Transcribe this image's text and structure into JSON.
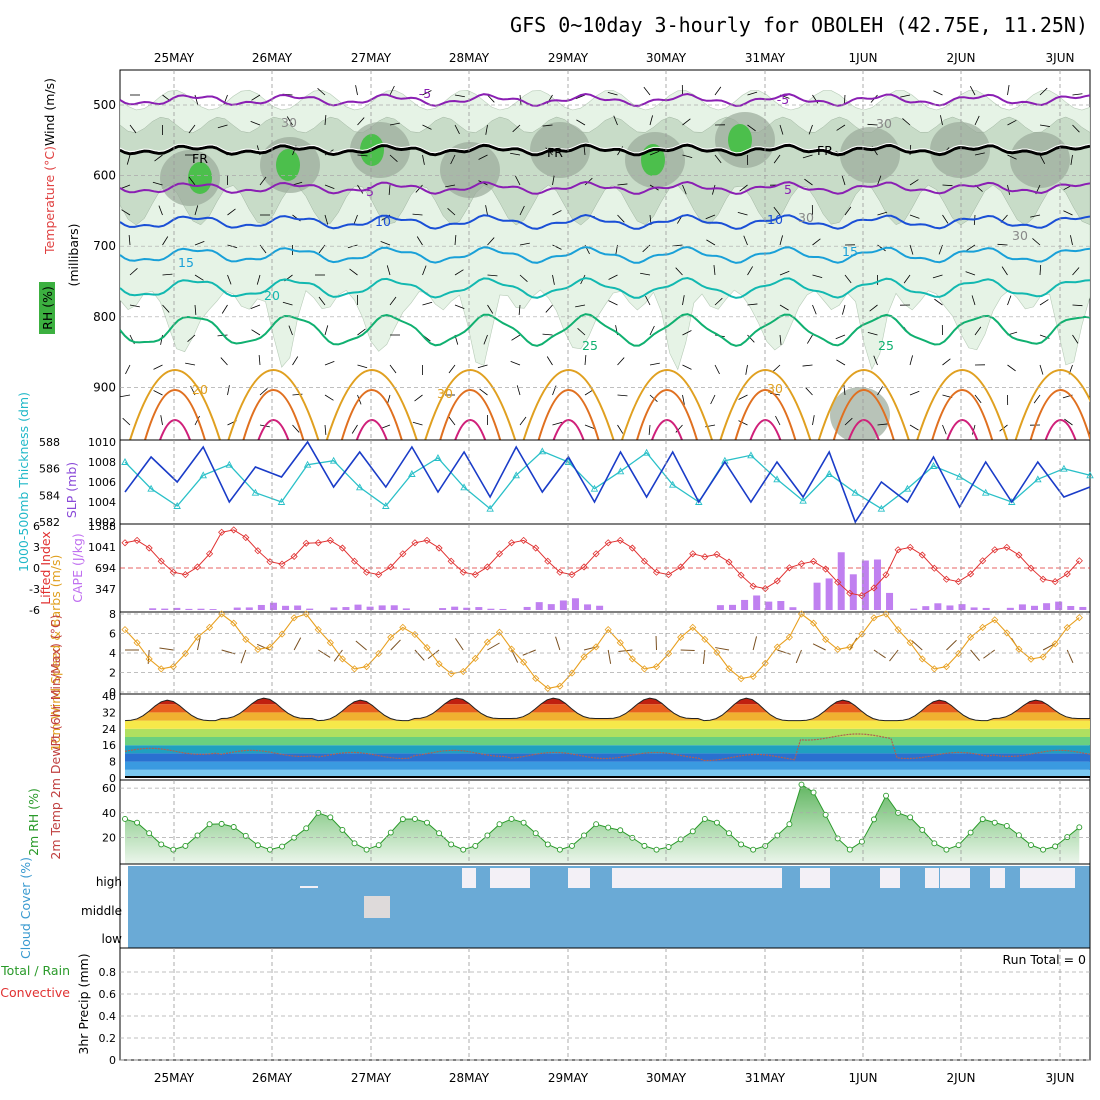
{
  "title": "GFS 0~10day 3-hourly for OBOLEH (42.75E, 11.25N)",
  "dates": [
    "25MAY",
    "26MAY",
    "27MAY",
    "28MAY",
    "29MAY",
    "30MAY",
    "31MAY",
    "1JUN",
    "2JUN",
    "3JUN"
  ],
  "colors": {
    "theta_purple": "#8a1fb3",
    "temp_blue": "#1a4fd6",
    "temp_cyan": "#19a0d8",
    "temp_teal": "#12b8b0",
    "temp_green": "#10b070",
    "temp_orange": "#e0a020",
    "slp_line": "#1a3cc8",
    "thickness_line": "#2ac0c8",
    "lifted_index": "#e03030",
    "cape_bar": "#c080f0",
    "wind_speed": "#e8a020",
    "wind_barb": "#7a5020",
    "rh_fill": "#9ad09a",
    "rh_line": "#2a9a2a",
    "cloud": "#6aaad6"
  },
  "panels": {
    "upper": {
      "y_axis_label": "(millibars)",
      "label_wind": "Wind (m/s)",
      "label_temp": "Temperature (°C)",
      "label_rh": "RH (%)",
      "yticks": [
        "500",
        "600",
        "700",
        "800",
        "900"
      ],
      "contour_labels": [
        "-5",
        "-5",
        "5",
        "5",
        "10",
        "10",
        "15",
        "15",
        "20",
        "25",
        "25",
        "20",
        "30",
        "30",
        "FR",
        "FR",
        "FR",
        "30",
        "30",
        "30",
        "30"
      ]
    },
    "slp": {
      "label": "1000-500mb Thickness (dm)",
      "label2": "SLP (mb)",
      "left_ticks": [
        "588",
        "586",
        "584",
        "582"
      ],
      "right_ticks": [
        "1010",
        "1008",
        "1006",
        "1004",
        "1002"
      ]
    },
    "cape": {
      "label": "Lifted Index",
      "label2": "CAPE (J/kg)",
      "left_ticks": [
        "-6",
        "-3",
        "0",
        "3",
        "6"
      ],
      "right_ticks": [
        "1388",
        "1041",
        "694",
        "347"
      ]
    },
    "wind10": {
      "label": "10m Wind Speed & Barbs (m/s)",
      "ticks": [
        "8",
        "6",
        "4",
        "2",
        "0"
      ]
    },
    "temp2m": {
      "label": "2m Temp 2m DewPt (6hr Min/Max) (°C)",
      "ticks": [
        "40",
        "32",
        "24",
        "16",
        "8",
        "0"
      ]
    },
    "rh2m": {
      "label": "2m RH (%)",
      "ticks": [
        "60",
        "40",
        "20"
      ]
    },
    "cloud": {
      "label": "Cloud Cover (%)",
      "levels": [
        "high",
        "middle",
        "low"
      ]
    },
    "precip": {
      "label": "3hr Precip (mm)",
      "label_total": "Total / Rain",
      "label_conv": "Convective",
      "run_total": "Run Total = 0",
      "ticks": [
        "0.8",
        "0.6",
        "0.4",
        "0.2",
        "0"
      ]
    }
  },
  "chart_data": [
    {
      "type": "line",
      "title": "1000-500mb Thickness (dm) / SLP (mb)",
      "x": [
        "25MAY00",
        "25MAY06",
        "25MAY12",
        "25MAY18",
        "26MAY00",
        "26MAY06",
        "26MAY12",
        "26MAY18",
        "27MAY00",
        "27MAY06",
        "27MAY12",
        "27MAY18",
        "28MAY00",
        "28MAY06",
        "28MAY12",
        "28MAY18",
        "29MAY00",
        "29MAY06",
        "29MAY12",
        "29MAY18",
        "30MAY00",
        "30MAY06",
        "30MAY12",
        "30MAY18",
        "31MAY00",
        "31MAY06",
        "31MAY12",
        "31MAY18",
        "1JUN00",
        "1JUN06",
        "1JUN12",
        "1JUN18",
        "2JUN00",
        "2JUN06",
        "2JUN12",
        "2JUN18",
        "3JUN00",
        "3JUN06"
      ],
      "series": [
        {
          "name": "SLP (mb)",
          "values": [
            1005,
            1008.5,
            1006,
            1009.5,
            1004,
            1007.5,
            1006.5,
            1010,
            1005.5,
            1009,
            1005.5,
            1009.5,
            1005,
            1009,
            1004.5,
            1009.5,
            1005,
            1008.5,
            1004,
            1009,
            1004.5,
            1009,
            1004,
            1008,
            1004,
            1008,
            1004.5,
            1009,
            1002,
            1006,
            1004,
            1008.5,
            1003.5,
            1008,
            1004,
            1008,
            1004.5,
            1005.5
          ]
        },
        {
          "name": "1000-500mb Thickness (dm)",
          "values": [
            586.5,
            584.5,
            583.2,
            585.5,
            586.3,
            584.2,
            583.5,
            586.3,
            586.6,
            584.6,
            583.2,
            585.6,
            586.8,
            584.6,
            583,
            585.5,
            587.3,
            586.5,
            584.5,
            585.8,
            587.2,
            584.8,
            583.5,
            586.6,
            587,
            585.2,
            583.6,
            585.6,
            584.2,
            583,
            584.5,
            586.2,
            585.4,
            584.2,
            583.5,
            585.2,
            586,
            585.5
          ]
        }
      ],
      "ylim": [
        1002,
        1010
      ],
      "y2lim": [
        582,
        588
      ]
    },
    {
      "type": "bar",
      "title": "Lifted Index / CAPE (J/kg)",
      "x": [
        "25MAY",
        "26MAY",
        "27MAY",
        "28MAY",
        "29MAY",
        "30MAY",
        "31MAY",
        "1JUN",
        "2JUN",
        "3JUN"
      ],
      "series": [
        {
          "name": "Lifted Index",
          "values": [
            0,
            1.5,
            0,
            0,
            0,
            0,
            -2,
            -3,
            -1,
            -1
          ]
        },
        {
          "name": "CAPE (J/kg)",
          "values": [
            40,
            120,
            110,
            60,
            210,
            0,
            240,
            1180,
            120,
            150
          ]
        }
      ],
      "ylim": [
        6,
        -6
      ],
      "y2lim": [
        0,
        1388
      ]
    },
    {
      "type": "line",
      "title": "10m Wind Speed & Barbs (m/s)",
      "x": [
        "25MAY",
        "26MAY",
        "27MAY",
        "28MAY",
        "29MAY",
        "30MAY",
        "31MAY",
        "1JUN",
        "2JUN",
        "3JUN"
      ],
      "series": [
        {
          "name": "10m Wind Speed",
          "values": [
            4.5,
            6.5,
            4.5,
            4,
            2.5,
            4.5,
            3.5,
            6.5,
            4.5,
            5.5
          ]
        }
      ],
      "ylim": [
        0,
        8
      ]
    },
    {
      "type": "area",
      "title": "2m Temp / 2m DewPt (6hr Min/Max) (°C)",
      "x": [
        "25MAY",
        "26MAY",
        "27MAY",
        "28MAY",
        "29MAY",
        "30MAY",
        "31MAY",
        "1JUN",
        "2JUN",
        "3JUN"
      ],
      "series": [
        {
          "name": "2m Temp max",
          "values": [
            38,
            39,
            38,
            39,
            39,
            39,
            39,
            38,
            38,
            38
          ]
        },
        {
          "name": "2m Temp min",
          "values": [
            28,
            29,
            28,
            29,
            29,
            29,
            28,
            28,
            28,
            29
          ]
        },
        {
          "name": "2m DewPt",
          "values": [
            13,
            12,
            11,
            12,
            11,
            11,
            10,
            20,
            11,
            12
          ]
        }
      ],
      "ylim": [
        0,
        40
      ]
    },
    {
      "type": "area",
      "title": "2m RH (%)",
      "x": [
        "25MAY",
        "26MAY",
        "27MAY",
        "28MAY",
        "29MAY",
        "30MAY",
        "31MAY",
        "1JUN",
        "2JUN",
        "3JUN"
      ],
      "series": [
        {
          "name": "2m RH",
          "values": [
            35,
            31,
            40,
            35,
            35,
            28,
            35,
            63,
            40,
            32
          ]
        }
      ],
      "ylim": [
        0,
        65
      ]
    },
    {
      "type": "bar",
      "title": "3hr Precip (mm)",
      "x": [
        "25MAY",
        "26MAY",
        "27MAY",
        "28MAY",
        "29MAY",
        "30MAY",
        "31MAY",
        "1JUN",
        "2JUN",
        "3JUN"
      ],
      "series": [
        {
          "name": "Total / Rain",
          "values": [
            0,
            0,
            0,
            0,
            0,
            0,
            0,
            0,
            0,
            0
          ]
        }
      ],
      "ylim": [
        0,
        1
      ]
    }
  ]
}
